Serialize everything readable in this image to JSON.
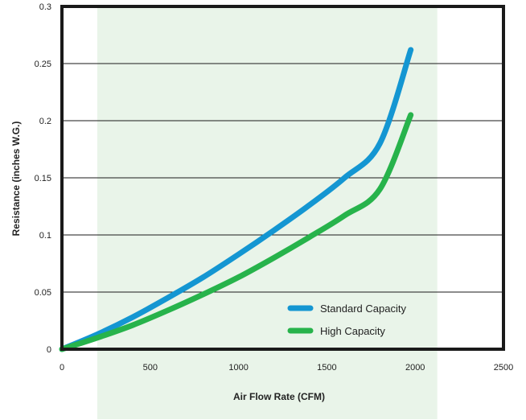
{
  "chart_data": {
    "type": "line",
    "title": "",
    "xlabel": "Air Flow Rate (CFM)",
    "ylabel": "Resistance (inches W.G.)",
    "xlim": [
      0,
      2500
    ],
    "ylim": [
      0,
      0.3
    ],
    "x_ticks": [
      0,
      500,
      1000,
      1500,
      2000,
      2500
    ],
    "y_ticks": [
      0,
      0.05,
      0.1,
      0.15,
      0.2,
      0.25,
      0.3
    ],
    "x_tick_labels": [
      "0",
      "500",
      "1000",
      "1500",
      "2000",
      "2500"
    ],
    "y_tick_labels": [
      "0",
      "0.05",
      "0.1",
      "0.15",
      "0.2",
      "0.25",
      "0.3"
    ],
    "grid": "horizontal",
    "legend_position": "bottom-right",
    "highlight_band_x": [
      200,
      2125
    ],
    "colors": {
      "band": "#e9f4e9",
      "frame": "#1a1a1a",
      "grid": "#1a1a1a"
    },
    "series": [
      {
        "name": "Standard Capacity",
        "color": "#1496d2",
        "x": [
          0,
          200,
          400,
          600,
          800,
          1000,
          1200,
          1400,
          1600,
          1800,
          1975
        ],
        "y": [
          0,
          0.013,
          0.028,
          0.045,
          0.063,
          0.083,
          0.104,
          0.126,
          0.15,
          0.18,
          0.262
        ]
      },
      {
        "name": "High Capacity",
        "color": "#27b34b",
        "x": [
          0,
          200,
          400,
          600,
          800,
          1000,
          1200,
          1400,
          1600,
          1800,
          1975
        ],
        "y": [
          0,
          0.01,
          0.021,
          0.034,
          0.048,
          0.063,
          0.08,
          0.098,
          0.117,
          0.14,
          0.205
        ]
      }
    ]
  }
}
